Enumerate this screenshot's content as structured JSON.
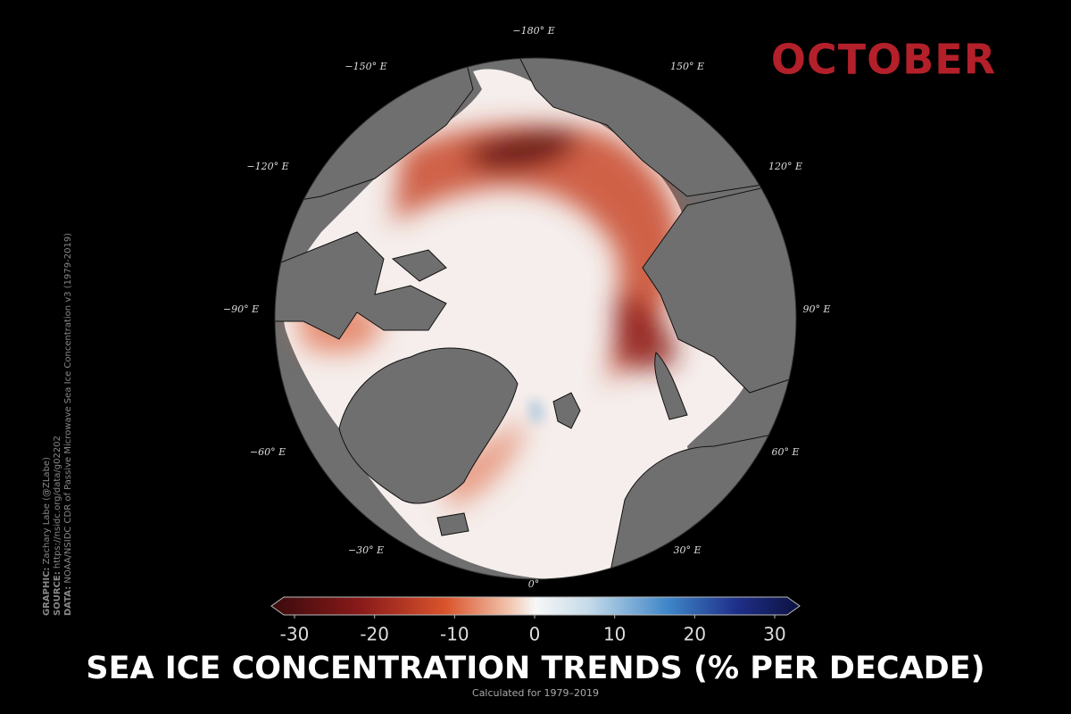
{
  "header": {
    "month": "OCTOBER"
  },
  "map": {
    "longitude_labels": [
      "−180° E",
      "−150° E",
      "150° E",
      "−120° E",
      "120° E",
      "−90° E",
      "90° E",
      "−60° E",
      "60° E",
      "−30° E",
      "30° E",
      "0°"
    ]
  },
  "colorbar": {
    "lim": [
      -30,
      30
    ],
    "ticks": [
      -30,
      -20,
      -10,
      0,
      10,
      20,
      30
    ]
  },
  "title": "SEA ICE CONCENTRATION TRENDS (% PER DECADE)",
  "subtitle": "Calculated for 1979–2019",
  "credits": [
    {
      "key": "GRAPHIC:",
      "text": " Zachary Labe (@ZLabe)"
    },
    {
      "key": "SOURCE:",
      "text": " https://nsidc.org/data/g02202"
    },
    {
      "key": "DATA:",
      "text": " NOAA/NSIDC CDR of Passive Microwave Sea Ice Concentration v3 (1979-2019)"
    }
  ]
}
